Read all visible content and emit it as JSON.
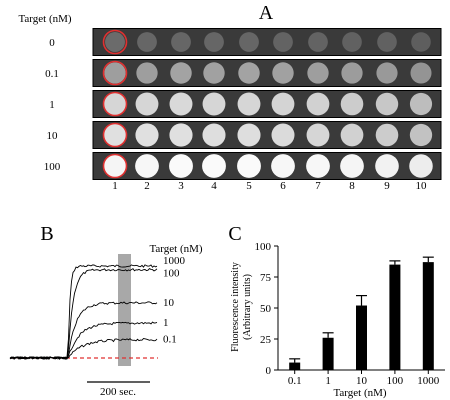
{
  "chart_data": [
    {
      "panel": "A",
      "type": "heatmap",
      "title": "A",
      "row_header": "Target (nM)",
      "rows": [
        "0",
        "0.1",
        "1",
        "10",
        "100"
      ],
      "columns": [
        "1",
        "2",
        "3",
        "4",
        "5",
        "6",
        "7",
        "8",
        "9",
        "10"
      ],
      "highlighted_column": "1",
      "highlight_color": "#e03030",
      "spot_brightness": [
        [
          0.42,
          0.4,
          0.4,
          0.4,
          0.4,
          0.39,
          0.39,
          0.38,
          0.38,
          0.37
        ],
        [
          0.62,
          0.62,
          0.64,
          0.63,
          0.64,
          0.63,
          0.62,
          0.61,
          0.6,
          0.58
        ],
        [
          0.84,
          0.84,
          0.85,
          0.84,
          0.84,
          0.83,
          0.82,
          0.8,
          0.78,
          0.74
        ],
        [
          0.88,
          0.88,
          0.88,
          0.87,
          0.87,
          0.86,
          0.84,
          0.82,
          0.8,
          0.76
        ],
        [
          0.96,
          0.97,
          0.98,
          0.98,
          0.98,
          0.97,
          0.97,
          0.96,
          0.95,
          0.93
        ]
      ]
    },
    {
      "panel": "B",
      "type": "line",
      "title": "B",
      "legend_title": "Target (nM)",
      "x_scale_label": "200 sec.",
      "shaded_region": "single vertical band after injection",
      "baseline_color": "#e03030",
      "series": [
        {
          "name": "1000",
          "plateau": 1.0
        },
        {
          "name": "100",
          "plateau": 0.96
        },
        {
          "name": "10",
          "plateau": 0.6
        },
        {
          "name": "1",
          "plateau": 0.38
        },
        {
          "name": "0.1",
          "plateau": 0.2
        }
      ]
    },
    {
      "panel": "C",
      "type": "bar",
      "title": "C",
      "xlabel": "Target (nM)",
      "ylabel_line1": "Fluorescence intensity",
      "ylabel_line2": "(Arbitrary units)",
      "categories": [
        "0.1",
        "1",
        "10",
        "100",
        "1000"
      ],
      "values": [
        6,
        26,
        52,
        85,
        87
      ],
      "errors": [
        3,
        4,
        8,
        3,
        4
      ],
      "ylim": [
        0,
        100
      ],
      "yticks": [
        "0",
        "25",
        "50",
        "75",
        "100"
      ],
      "bar_color": "#000000"
    }
  ]
}
